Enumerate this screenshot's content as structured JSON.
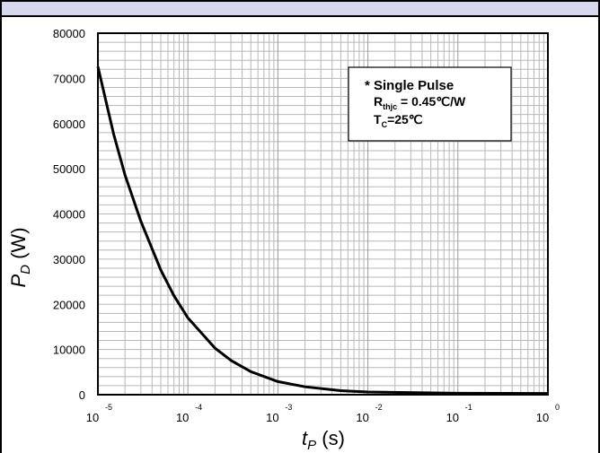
{
  "chart_data": {
    "type": "line",
    "xlabel": {
      "main": "t",
      "sub": "P",
      "unit": "(s)"
    },
    "ylabel": {
      "main": "P",
      "sub": "D",
      "unit": "(W)"
    },
    "x_scale": "log",
    "xlim": [
      1e-05,
      1
    ],
    "ylim": [
      0,
      80000
    ],
    "grid": true,
    "x_ticks": [
      {
        "base": "10",
        "exp": "-5"
      },
      {
        "base": "10",
        "exp": "-4"
      },
      {
        "base": "10",
        "exp": "-3"
      },
      {
        "base": "10",
        "exp": "-2"
      },
      {
        "base": "10",
        "exp": "-1"
      },
      {
        "base": "10",
        "exp": "0"
      }
    ],
    "y_ticks": [
      "0",
      "10000",
      "20000",
      "30000",
      "40000",
      "50000",
      "60000",
      "70000",
      "80000"
    ],
    "annotation": {
      "line1": "* Single Pulse",
      "line2_main": "R",
      "line2_sub": "thjc",
      "line2_rest": " = 0.45℃/W",
      "line3_main": "T",
      "line3_sub": "C",
      "line3_rest": "=25℃"
    },
    "series": [
      {
        "x": [
          1e-05,
          1.5e-05,
          2e-05,
          3e-05,
          5e-05,
          7e-05,
          0.0001,
          0.0002,
          0.0003,
          0.0005,
          0.001,
          0.002,
          0.005,
          0.01,
          0.1,
          1
        ],
        "y": [
          72600,
          57600,
          48600,
          38400,
          27600,
          21900,
          17000,
          10300,
          7600,
          5100,
          2900,
          1750,
          900,
          600,
          320,
          280
        ]
      }
    ]
  }
}
